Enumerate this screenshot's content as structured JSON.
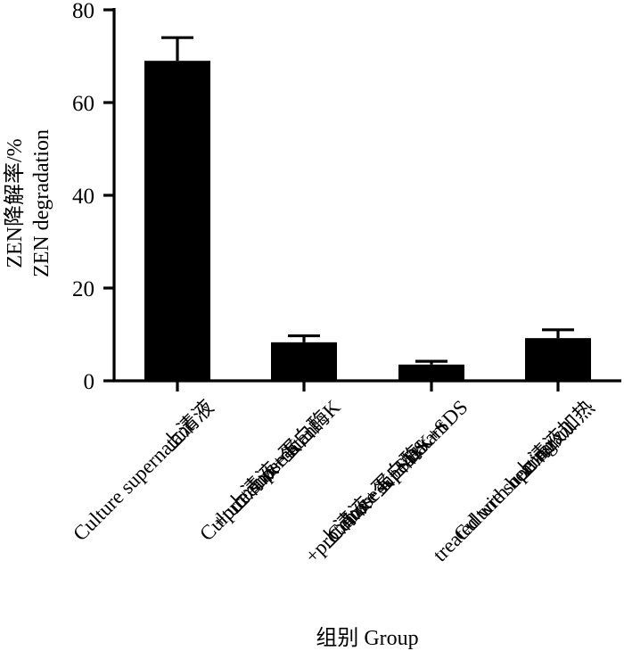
{
  "chart_data": {
    "type": "bar",
    "categories": [
      [
        "上清液",
        "Culture supernatant"
      ],
      [
        "上清液+蛋白酶K",
        "Culture supernatant",
        "+proteinase K"
      ],
      [
        "上清液+蛋白酶K+SDS",
        "Culture supernatant",
        "+proteinase K+SDS"
      ],
      [
        "上清液加热",
        "Culture supernatant",
        "treated with heating"
      ]
    ],
    "values": [
      69,
      8.3,
      3.5,
      9.2
    ],
    "errors": [
      5.0,
      1.4,
      0.7,
      1.8
    ],
    "ylim": [
      0,
      80
    ],
    "yticks": [
      0,
      20,
      40,
      60,
      80
    ],
    "ylabel": [
      "ZEN降解率/%",
      "ZEN degradation"
    ],
    "xlabel": "组别  Group",
    "bar_color": "#000000",
    "grid": false
  }
}
